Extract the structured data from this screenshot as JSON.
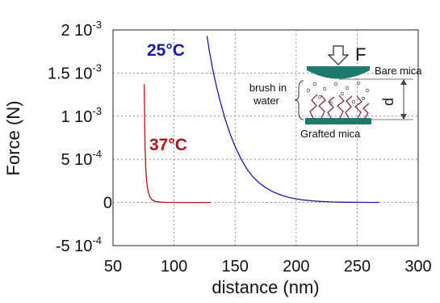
{
  "chart_data": {
    "type": "line",
    "title": "",
    "xlabel": "distance (nm)",
    "ylabel": "Force (N)",
    "xlim": [
      50,
      300
    ],
    "ylim": [
      -0.0005,
      0.002
    ],
    "grid": "dashed horizontal and vertical",
    "x_ticks": [
      {
        "value": 50,
        "label": "50"
      },
      {
        "value": 100,
        "label": "100"
      },
      {
        "value": 150,
        "label": "150"
      },
      {
        "value": 200,
        "label": "200"
      },
      {
        "value": 250,
        "label": "250"
      },
      {
        "value": 300,
        "label": "300"
      }
    ],
    "y_ticks": [
      {
        "value": 0.002,
        "mantissa": "2 10",
        "exp": "-3"
      },
      {
        "value": 0.0015,
        "mantissa": "1.5 10",
        "exp": "-3"
      },
      {
        "value": 0.001,
        "mantissa": "1 10",
        "exp": "-3"
      },
      {
        "value": 0.0005,
        "mantissa": "5 10",
        "exp": "-4"
      },
      {
        "value": 0,
        "mantissa": "0",
        "exp": ""
      },
      {
        "value": -0.0005,
        "mantissa": "-5 10",
        "exp": "-4"
      }
    ],
    "series": [
      {
        "name": "25°C",
        "color": "#1a1aa0",
        "x": [
          127,
          129,
          132,
          135,
          138,
          142,
          146,
          150,
          155,
          160,
          165,
          170,
          175,
          180,
          185,
          190,
          195,
          200,
          205,
          210,
          215,
          220,
          225,
          230,
          240,
          250,
          260,
          268
        ],
        "y": [
          0.00193,
          0.00175,
          0.00152,
          0.00133,
          0.00116,
          0.00096,
          0.00079,
          0.00065,
          0.0005,
          0.00038,
          0.00029,
          0.000225,
          0.000172,
          0.00013,
          0.0001,
          7.5e-05,
          5.6e-05,
          4.2e-05,
          3.1e-05,
          2.3e-05,
          1.7e-05,
          1.2e-05,
          9e-06,
          6e-06,
          3e-06,
          1.5e-06,
          8e-07,
          5e-07
        ]
      },
      {
        "name": "37°C",
        "color": "#b0141e",
        "x": [
          75.5,
          75.8,
          76,
          76.3,
          76.8,
          77.5,
          78.5,
          80,
          82,
          85,
          90,
          95,
          100,
          110,
          120,
          130
        ],
        "y": [
          0.00137,
          0.0011,
          0.00085,
          0.0006,
          0.0004,
          0.00025,
          0.00014,
          7e-05,
          3e-05,
          1e-05,
          3e-06,
          1e-06,
          5e-07,
          2e-07,
          1e-07,
          0.0
        ]
      }
    ],
    "inset": {
      "force_label": "F",
      "bare_mica": "Bare mica",
      "brush_line1": "brush in",
      "brush_line2": "water",
      "distance_label": "d",
      "grafted_mica": "Grafted mica",
      "mica_color": "#1f7a6e"
    }
  }
}
